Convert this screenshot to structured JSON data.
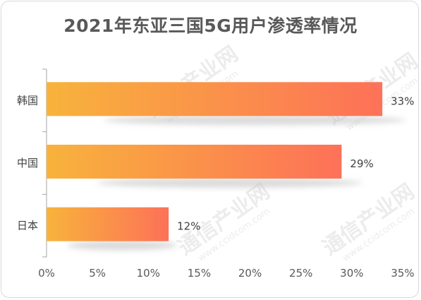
{
  "chart_data": {
    "type": "bar",
    "orientation": "horizontal",
    "title": "2021年东亚三国5G用户渗透率情况",
    "categories": [
      "韩国",
      "中国",
      "日本"
    ],
    "values": [
      33,
      29,
      12
    ],
    "value_labels": [
      "33%",
      "29%",
      "12%"
    ],
    "xlim": [
      0,
      35
    ],
    "x_ticks": [
      "0%",
      "5%",
      "10%",
      "15%",
      "20%",
      "25%",
      "30%",
      "35%"
    ],
    "grid": false,
    "bar_gradient": [
      "#f8b33c",
      "#fd7158"
    ]
  },
  "watermark": {
    "text": "通信产业网",
    "sub": "www.ccidcom.com"
  }
}
